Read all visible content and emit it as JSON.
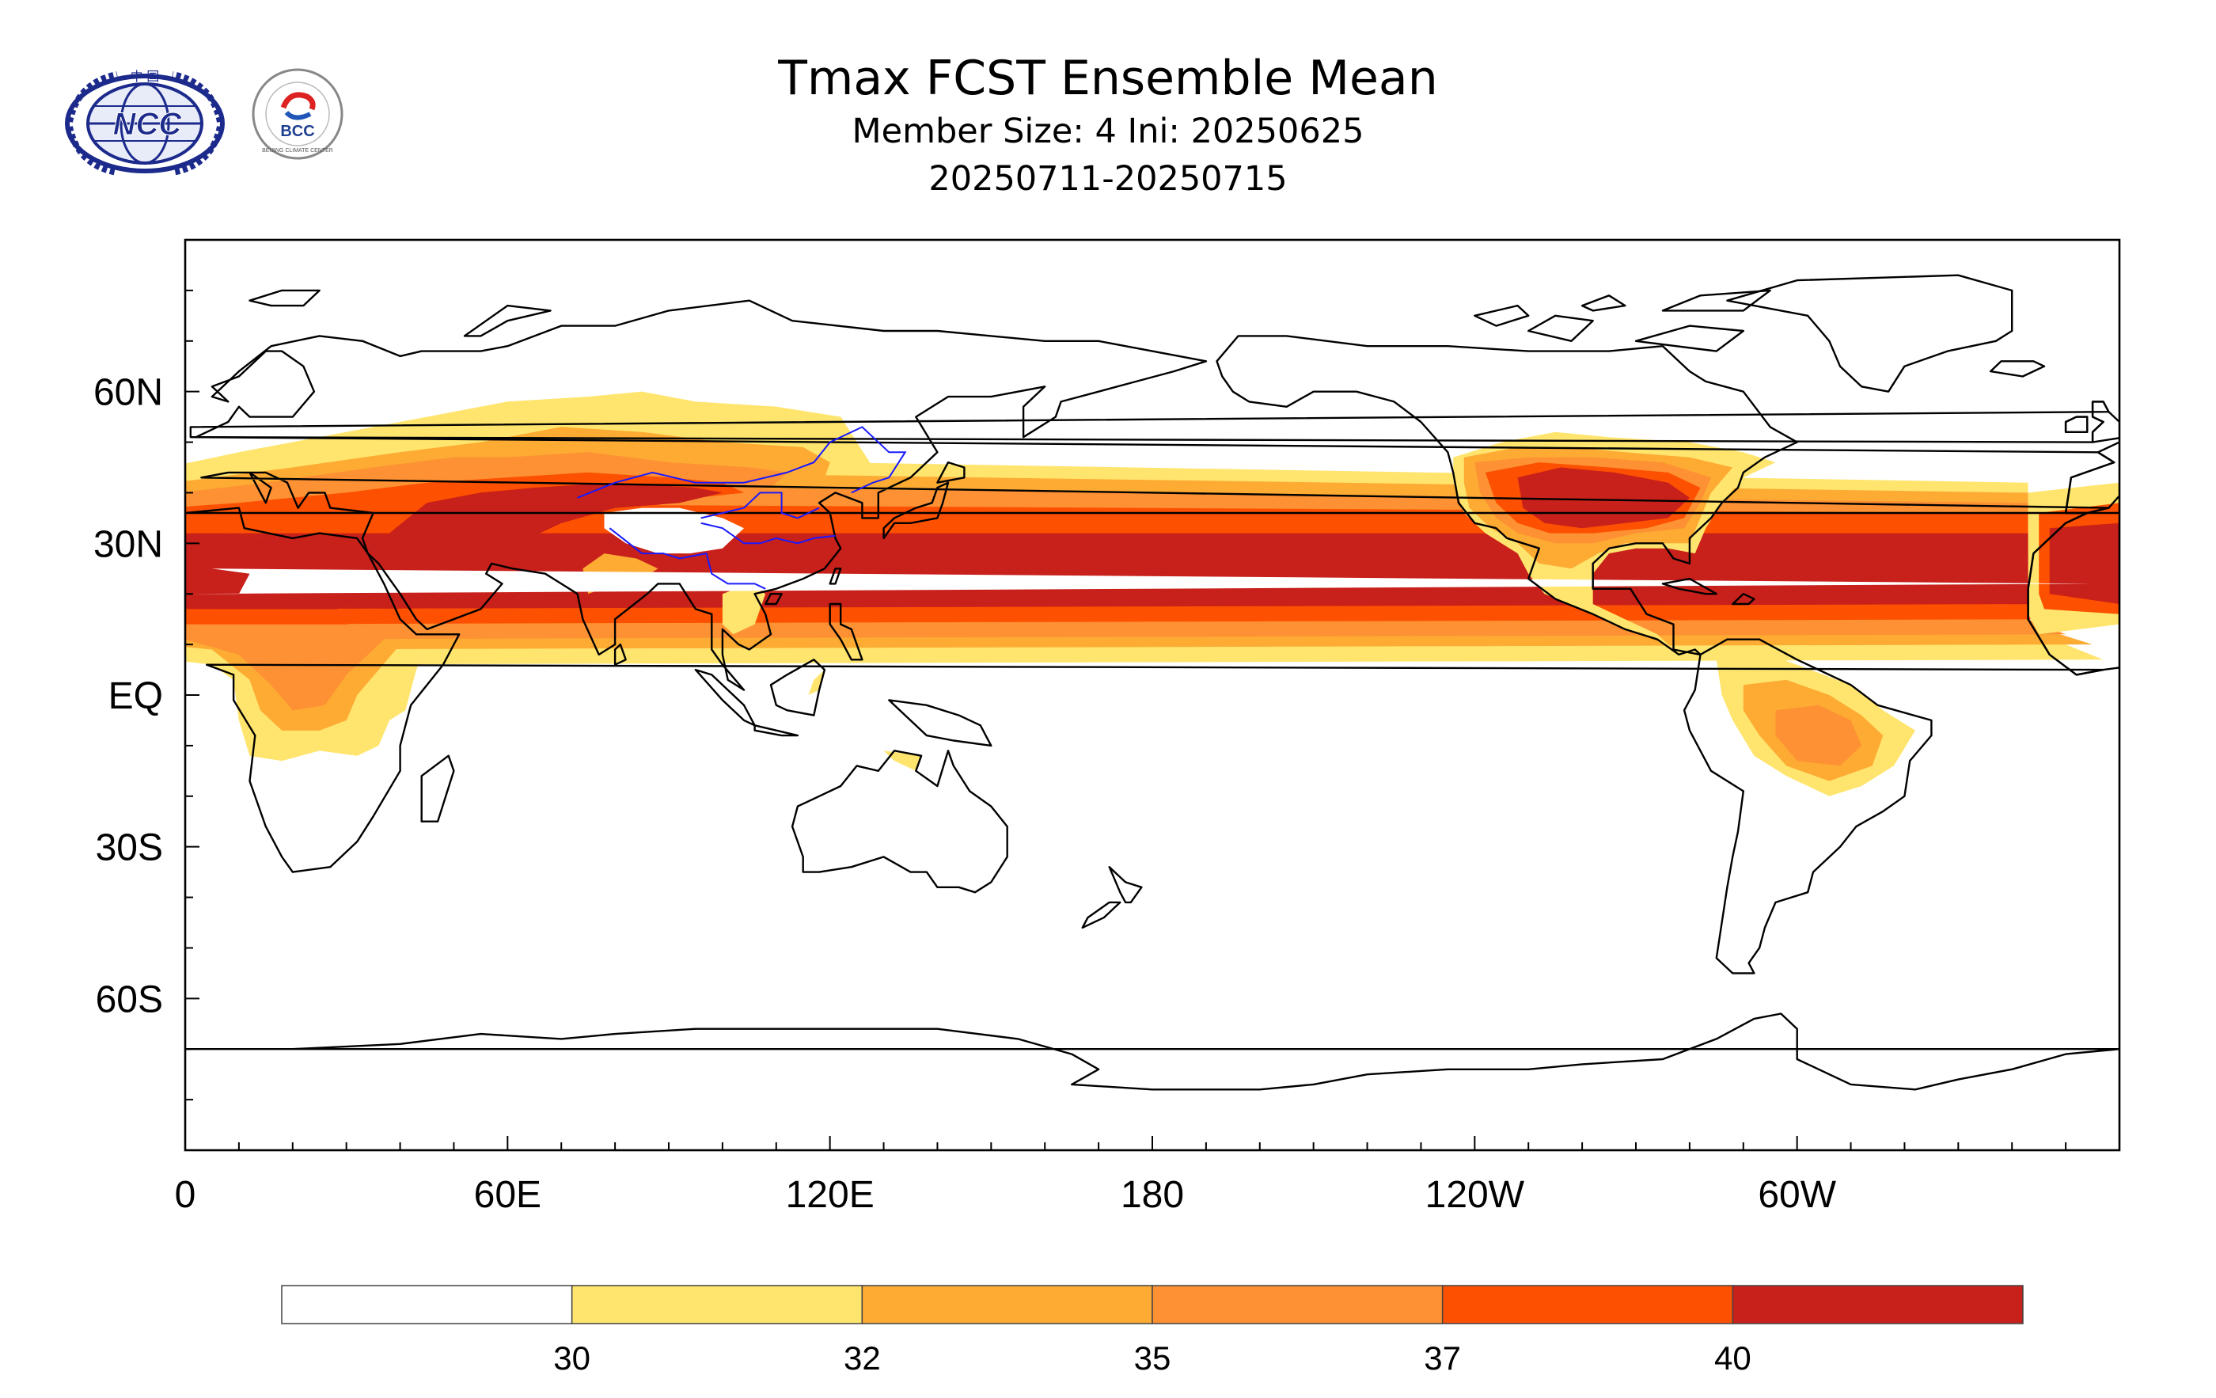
{
  "title": "Tmax FCST Ensemble Mean",
  "subtitle_members": "Member Size: 4  Ini: 20250625",
  "subtitle_period": "20250711-20250715",
  "logos": {
    "ncc": {
      "text": "NCC",
      "top_text": "中 国",
      "icon": "ncc-globe-logo"
    },
    "bcc": {
      "text": "BCC",
      "ring_text": "BEIJING CLIMATE CENTER",
      "icon": "bcc-logo"
    }
  },
  "map": {
    "projection": "cylindrical-equidistant",
    "lon_range": [
      0,
      360
    ],
    "lat_range": [
      -90,
      90
    ],
    "x_tick_labels": [
      {
        "lon": 0,
        "label": "0"
      },
      {
        "lon": 60,
        "label": "60E"
      },
      {
        "lon": 120,
        "label": "120E"
      },
      {
        "lon": 180,
        "label": "180"
      },
      {
        "lon": 240,
        "label": "120W"
      },
      {
        "lon": 300,
        "label": "60W"
      }
    ],
    "y_tick_labels": [
      {
        "lat": 60,
        "label": "60N"
      },
      {
        "lat": 30,
        "label": "30N"
      },
      {
        "lat": 0,
        "label": "EQ"
      },
      {
        "lat": -30,
        "label": "30S"
      },
      {
        "lat": -60,
        "label": "60S"
      }
    ],
    "coastline_color": "#000000",
    "river_color": "#1a1aff"
  },
  "colorbar": {
    "colors": [
      "#ffffff",
      "#ffe56e",
      "#fdab33",
      "#fd9133",
      "#fd5000",
      "#c8201a"
    ],
    "levels": [
      "30",
      "32",
      "35",
      "37",
      "40"
    ]
  }
}
